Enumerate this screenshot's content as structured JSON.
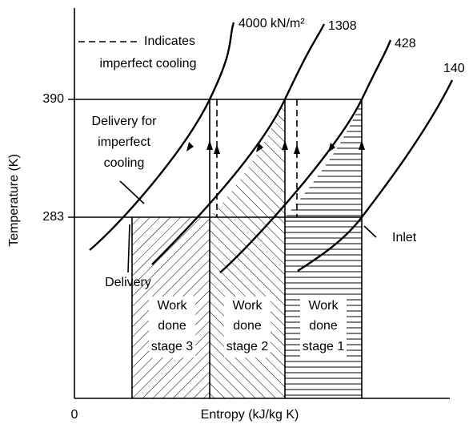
{
  "axes": {
    "y_label": "Temperature (K)",
    "x_label": "Entropy (kJ/kg K)",
    "origin": "0",
    "y_ticks": [
      "390",
      "283"
    ]
  },
  "legend": {
    "lines": [
      "Indicates",
      "imperfect cooling"
    ]
  },
  "curves": [
    {
      "label": "4000 kN/m²"
    },
    {
      "label": "1308"
    },
    {
      "label": "428"
    },
    {
      "label": "140"
    }
  ],
  "annotations": {
    "delivery_imperfect": [
      "Delivery for",
      "imperfect",
      "cooling"
    ],
    "delivery": "Delivery",
    "inlet": "Inlet"
  },
  "regions": [
    {
      "lines": [
        "Work",
        "done",
        "stage 3"
      ]
    },
    {
      "lines": [
        "Work",
        "done",
        "stage 2"
      ]
    },
    {
      "lines": [
        "Work",
        "done",
        "stage 1"
      ]
    }
  ]
}
